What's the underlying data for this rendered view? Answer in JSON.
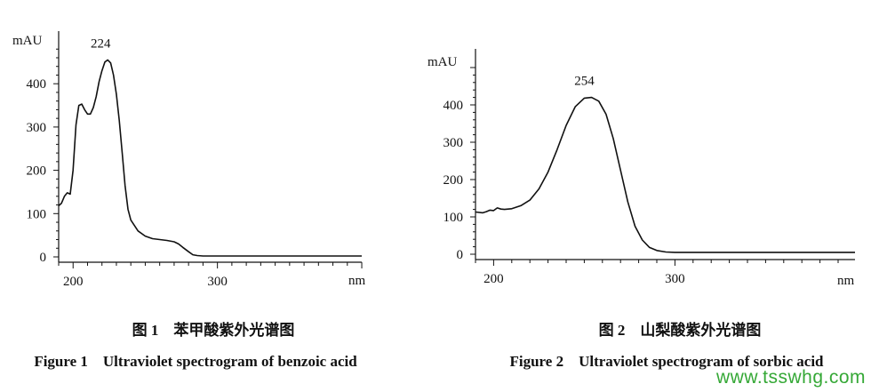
{
  "chart_data": [
    {
      "type": "line",
      "caption_cn": "图 1　苯甲酸紫外光谱图",
      "caption_en": "Figure 1　Ultraviolet spectrogram of benzoic acid",
      "ylabel": "mAU",
      "xlabel": "nm",
      "xlim": [
        190,
        400
      ],
      "ylim": [
        0,
        480
      ],
      "x_ticks": [
        200,
        300
      ],
      "y_ticks": [
        0,
        100,
        200,
        300,
        400
      ],
      "peak_label": "224",
      "peak": {
        "x": 224,
        "y": 455
      },
      "series": [
        {
          "x": [
            190,
            192,
            194,
            196,
            198,
            200,
            202,
            204,
            206,
            208,
            210,
            212,
            214,
            216,
            218,
            220,
            222,
            224,
            226,
            228,
            230,
            232,
            234,
            236,
            238,
            240,
            245,
            250,
            255,
            260,
            265,
            270,
            273,
            276,
            280,
            283,
            286,
            290,
            300,
            320,
            350,
            380,
            400
          ],
          "y": [
            118,
            124,
            140,
            148,
            145,
            200,
            305,
            350,
            353,
            340,
            330,
            330,
            345,
            370,
            405,
            430,
            450,
            455,
            448,
            420,
            375,
            315,
            240,
            165,
            110,
            85,
            60,
            48,
            42,
            40,
            38,
            35,
            30,
            22,
            12,
            5,
            3,
            2,
            2,
            2,
            2,
            2,
            2
          ]
        }
      ]
    },
    {
      "type": "line",
      "caption_cn": "图 2　山梨酸紫外光谱图",
      "caption_en": "Figure 2　Ultraviolet spectrogram of sorbic acid",
      "ylabel": "mAU",
      "xlabel": "nm",
      "xlim": [
        190,
        400
      ],
      "ylim": [
        0,
        500
      ],
      "x_ticks": [
        200,
        300
      ],
      "y_ticks": [
        0,
        100,
        200,
        300,
        400
      ],
      "peak_label": "254",
      "peak": {
        "x": 254,
        "y": 420
      },
      "series": [
        {
          "x": [
            190,
            194,
            196,
            198,
            200,
            202,
            204,
            206,
            210,
            215,
            220,
            225,
            230,
            235,
            240,
            245,
            250,
            254,
            258,
            262,
            266,
            270,
            274,
            278,
            282,
            286,
            290,
            295,
            300,
            310,
            330,
            360,
            400
          ],
          "y": [
            113,
            111,
            114,
            118,
            117,
            124,
            121,
            120,
            122,
            130,
            145,
            175,
            220,
            280,
            345,
            395,
            418,
            420,
            410,
            375,
            310,
            225,
            140,
            75,
            38,
            18,
            10,
            6,
            5,
            5,
            5,
            5,
            5
          ]
        }
      ]
    }
  ],
  "watermark": "www.tsswhg.com"
}
